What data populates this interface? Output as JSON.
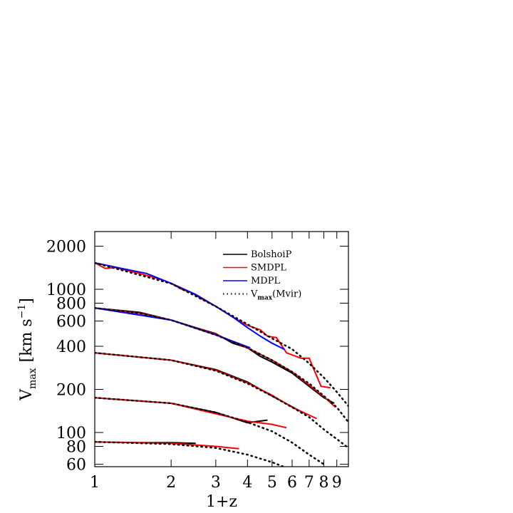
{
  "chart_data": {
    "type": "line",
    "x_label": "1+z",
    "y_label": {
      "symbol": "V",
      "sub": "max",
      "unit": "[km s",
      "sup": "−1",
      "close": "]"
    },
    "xscale": "log",
    "yscale": "log",
    "xlim": [
      1,
      10
    ],
    "ylim": [
      57.7,
      2530
    ],
    "xticks": [
      1,
      2,
      3,
      4,
      5,
      6,
      7,
      8,
      9
    ],
    "yticks": [
      60,
      80,
      100,
      200,
      400,
      600,
      800,
      1000,
      2000
    ],
    "legend": "top-right",
    "series": [
      {
        "name": "BolshoiP",
        "color": "#000000",
        "style": "solid",
        "lines": [
          {
            "x": [
              1,
              1.5,
              2,
              2.5,
              3,
              3.5,
              4,
              4.5,
              5,
              6,
              7,
              8,
              8.8
            ],
            "values": [
              740,
              690,
              610,
              540,
              490,
              420,
              390,
              340,
              310,
              260,
              210,
              175,
              160
            ]
          },
          {
            "x": [
              1,
              2,
              3,
              4,
              5,
              6.5,
              6.8
            ],
            "values": [
              360,
              320,
              275,
              225,
              180,
              140,
              135
            ]
          },
          {
            "x": [
              1,
              2,
              3,
              4,
              4.8
            ],
            "values": [
              175,
              160,
              138,
              117,
              122
            ]
          },
          {
            "x": [
              1,
              1.5,
              2,
              2.5
            ],
            "values": [
              86,
              85,
              85,
              84
            ]
          }
        ]
      },
      {
        "name": "SMDPL",
        "color": "#ff0000",
        "style": "solid",
        "lines": [
          {
            "x": [
              1,
              1.1,
              1.2,
              1.5,
              1.8,
              2,
              2.2,
              2.4,
              2.6,
              3,
              3.5,
              4,
              4.5,
              4.8,
              5.2,
              5.7,
              6.5,
              7,
              7.8,
              8.5
            ],
            "values": [
              1530,
              1400,
              1420,
              1290,
              1180,
              1100,
              1000,
              950,
              870,
              760,
              640,
              560,
              520,
              470,
              460,
              360,
              330,
              330,
              210,
              205
            ]
          },
          {
            "x": [
              1,
              1.5,
              2,
              3,
              4,
              5,
              6,
              7,
              8,
              8.9
            ],
            "values": [
              740,
              680,
              610,
              485,
              390,
              320,
              265,
              215,
              178,
              150
            ]
          },
          {
            "x": [
              1,
              2,
              3,
              4,
              5,
              6,
              7.5
            ],
            "values": [
              360,
              320,
              272,
              222,
              182,
              150,
              125
            ]
          },
          {
            "x": [
              1,
              2,
              3,
              4,
              5,
              5.7
            ],
            "values": [
              175,
              160,
              135,
              120,
              114,
              108
            ]
          },
          {
            "x": [
              1,
              2,
              3,
              3.7
            ],
            "values": [
              86,
              84,
              80,
              77
            ]
          }
        ]
      },
      {
        "name": "MDPL",
        "color": "#0000ff",
        "style": "solid",
        "lines": [
          {
            "x": [
              1,
              1.3,
              1.6,
              2,
              2.5,
              3,
              3.5,
              4,
              4.5,
              5,
              5.6
            ],
            "values": [
              1530,
              1390,
              1290,
              1100,
              920,
              760,
              640,
              540,
              470,
              420,
              380
            ]
          },
          {
            "x": [
              1,
              2,
              3,
              4.1
            ],
            "values": [
              740,
              610,
              480,
              390
            ]
          }
        ]
      },
      {
        "name": {
          "symbol": "V",
          "sub": "max",
          "rest": "(Mvir)"
        },
        "color": "#000000",
        "style": "dotted",
        "lines": [
          {
            "x": [
              1,
              2,
              3,
              4,
              5,
              6,
              7,
              8,
              9,
              10
            ],
            "values": [
              1530,
              1096,
              759,
              570,
              454,
              382,
              304,
              242,
              192,
              153
            ]
          },
          {
            "x": [
              1,
              1.5,
              2,
              3,
              4,
              5,
              6,
              7,
              8,
              9,
              10
            ],
            "values": [
              740,
              680,
              610,
              480,
              390,
              320,
              265,
              220,
              180,
              150,
              118
            ]
          },
          {
            "x": [
              1,
              2,
              3,
              4,
              5,
              6,
              7,
              8,
              9,
              10
            ],
            "values": [
              360,
              320,
              270,
              220,
              180,
              150,
              128,
              105,
              90,
              78
            ]
          },
          {
            "x": [
              1,
              2,
              3,
              4,
              5,
              6,
              7,
              8
            ],
            "values": [
              175,
              160,
              138,
              118,
              102,
              85,
              70,
              60
            ]
          },
          {
            "x": [
              1,
              2,
              3,
              4,
              5,
              5.5
            ],
            "values": [
              86,
              83,
              78,
              70,
              62,
              58
            ]
          }
        ]
      }
    ]
  }
}
